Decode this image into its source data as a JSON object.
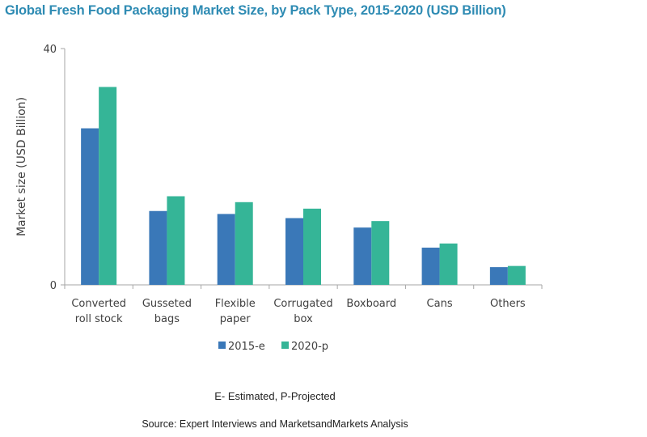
{
  "chart_data": {
    "type": "bar",
    "title": "Global Fresh Food Packaging Market Size, by Pack Type,  2015-2020 (USD Billion)",
    "ylabel": "Market size (USD Billion)",
    "xlabel": "",
    "ylim": [
      0,
      40
    ],
    "yticks": [
      "0",
      "40"
    ],
    "grid": false,
    "legend_position": "bottom",
    "categories": [
      [
        "Converted",
        "roll stock"
      ],
      [
        "Gusseted",
        "bags"
      ],
      [
        "Flexible",
        "paper"
      ],
      [
        "Corrugated",
        "box"
      ],
      [
        "Boxboard"
      ],
      [
        "Cans"
      ],
      [
        "Others"
      ]
    ],
    "series": [
      {
        "name": "2015-e",
        "color": "#3a78b8",
        "values": [
          26.5,
          12.5,
          12.0,
          11.3,
          9.7,
          6.3,
          3.0
        ]
      },
      {
        "name": "2020-p",
        "color": "#35b597",
        "values": [
          33.5,
          15.0,
          14.0,
          12.9,
          10.8,
          7.0,
          3.2
        ]
      }
    ]
  },
  "note": "E- Estimated, P-Projected",
  "source": "Source: Expert Interviews and MarketsandMarkets Analysis"
}
